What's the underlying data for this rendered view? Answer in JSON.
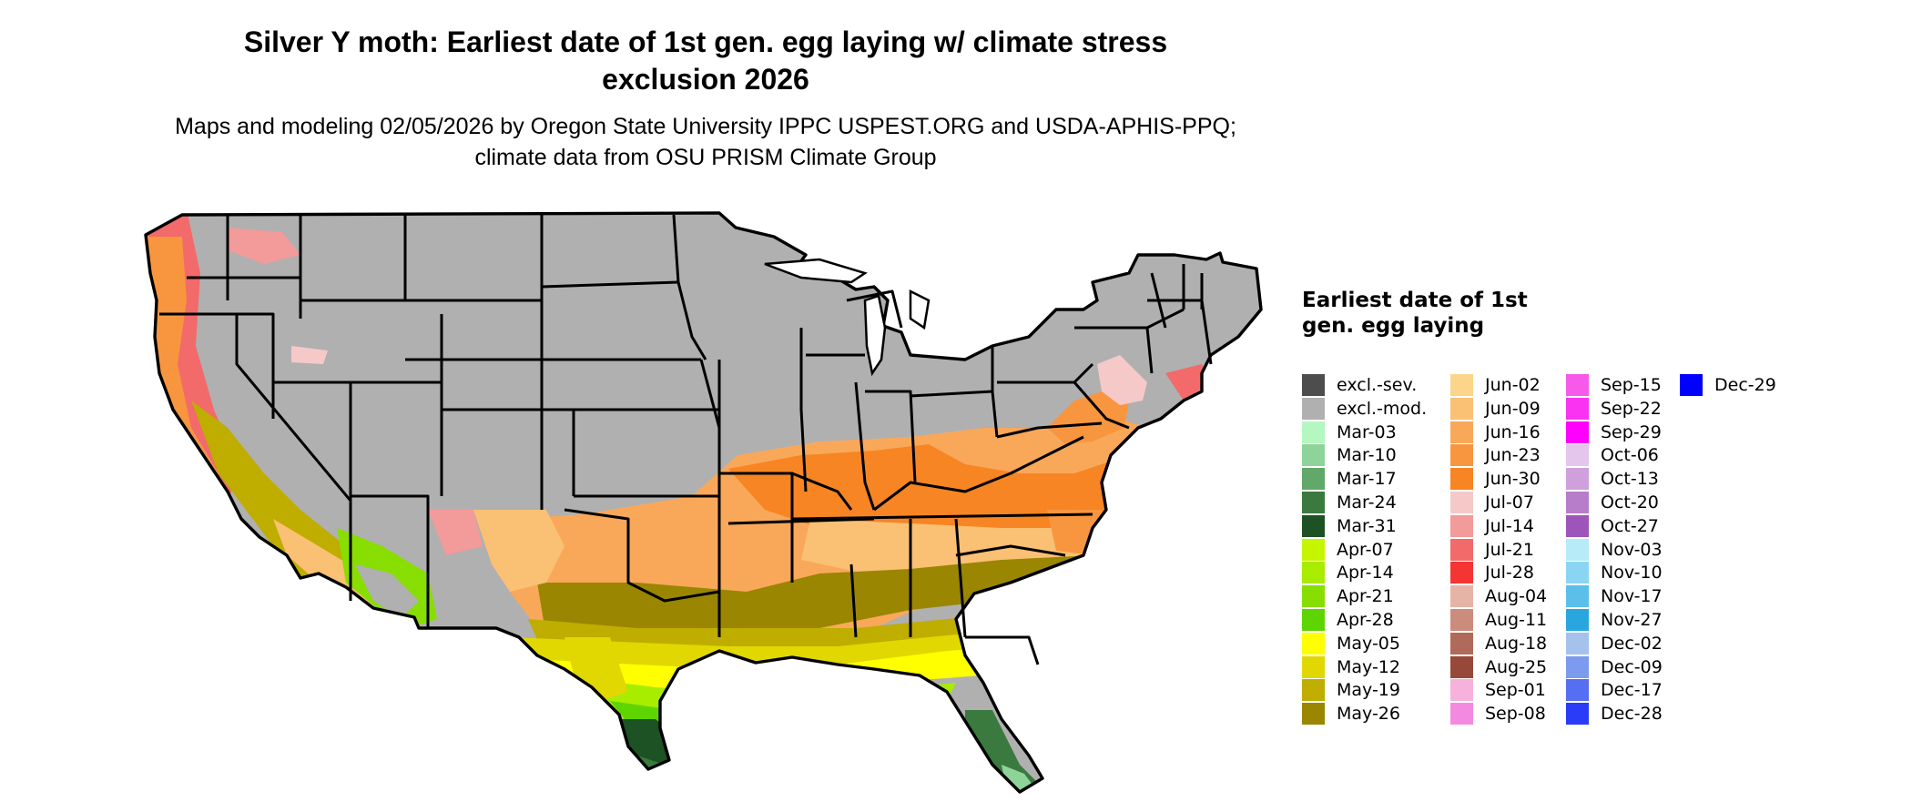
{
  "title": "Silver Y moth: Earliest date of 1st gen. egg laying w/ climate stress exclusion 2026",
  "subtitle": "Maps and modeling 02/05/2026 by Oregon State University IPPC USPEST.ORG and USDA-APHIS-PPQ; climate data from OSU PRISM Climate Group",
  "legend": {
    "title": "Earliest date of 1st gen. egg laying",
    "columns": [
      [
        {
          "label": "excl.-sev.",
          "color": "#4d4d4d"
        },
        {
          "label": "excl.-mod.",
          "color": "#b0b0b0"
        },
        {
          "label": "Mar-03",
          "color": "#b4f7c0"
        },
        {
          "label": "Mar-10",
          "color": "#8ed49a"
        },
        {
          "label": "Mar-17",
          "color": "#62a868"
        },
        {
          "label": "Mar-24",
          "color": "#3a7a3e"
        },
        {
          "label": "Mar-31",
          "color": "#1d5224"
        },
        {
          "label": "Apr-07",
          "color": "#c6f500"
        },
        {
          "label": "Apr-14",
          "color": "#a8ec00"
        },
        {
          "label": "Apr-21",
          "color": "#88de00"
        },
        {
          "label": "Apr-28",
          "color": "#5ed400"
        },
        {
          "label": "May-05",
          "color": "#ffff00"
        },
        {
          "label": "May-12",
          "color": "#e0d800"
        },
        {
          "label": "May-19",
          "color": "#bfad00"
        },
        {
          "label": "May-26",
          "color": "#9a8600"
        }
      ],
      [
        {
          "label": "Jun-02",
          "color": "#fbd68a"
        },
        {
          "label": "Jun-09",
          "color": "#fac074"
        },
        {
          "label": "Jun-16",
          "color": "#f9a85a"
        },
        {
          "label": "Jun-23",
          "color": "#f89640"
        },
        {
          "label": "Jun-30",
          "color": "#f78523"
        },
        {
          "label": "Jul-07",
          "color": "#f6c9c9"
        },
        {
          "label": "Jul-14",
          "color": "#f39a9a"
        },
        {
          "label": "Jul-21",
          "color": "#f26a6a"
        },
        {
          "label": "Jul-28",
          "color": "#f53434"
        },
        {
          "label": "Aug-04",
          "color": "#e6b4a6"
        },
        {
          "label": "Aug-11",
          "color": "#cc8c7c"
        },
        {
          "label": "Aug-18",
          "color": "#b06a5a"
        },
        {
          "label": "Aug-25",
          "color": "#974838"
        },
        {
          "label": "Sep-01",
          "color": "#f7b2dc"
        },
        {
          "label": "Sep-08",
          "color": "#f48ae0"
        }
      ],
      [
        {
          "label": "Sep-15",
          "color": "#f55ae8"
        },
        {
          "label": "Sep-22",
          "color": "#fa32f2"
        },
        {
          "label": "Sep-29",
          "color": "#ff00ff"
        },
        {
          "label": "Oct-06",
          "color": "#e4c6ec"
        },
        {
          "label": "Oct-13",
          "color": "#cfa0dc"
        },
        {
          "label": "Oct-20",
          "color": "#b77cca"
        },
        {
          "label": "Oct-27",
          "color": "#9e55ba"
        },
        {
          "label": "Nov-03",
          "color": "#b8ebf8"
        },
        {
          "label": "Nov-10",
          "color": "#8ad6f2"
        },
        {
          "label": "Nov-17",
          "color": "#5ac0ea"
        },
        {
          "label": "Nov-27",
          "color": "#2aa6de"
        },
        {
          "label": "Dec-02",
          "color": "#a4c2ec"
        },
        {
          "label": "Dec-09",
          "color": "#7c9aee"
        },
        {
          "label": "Dec-17",
          "color": "#566ef2"
        },
        {
          "label": "Dec-28",
          "color": "#2a3cf8"
        }
      ],
      [
        {
          "label": "Dec-29",
          "color": "#0000ff"
        }
      ]
    ]
  }
}
